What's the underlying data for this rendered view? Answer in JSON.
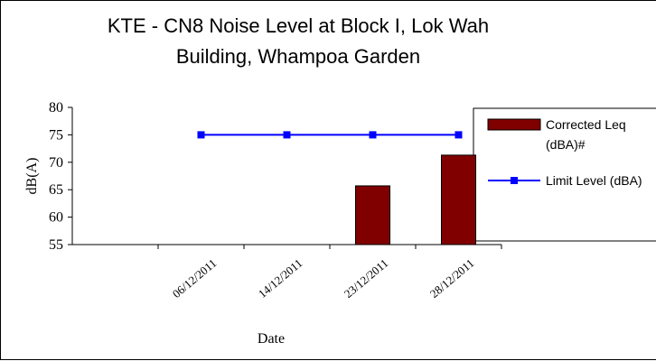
{
  "chart_data": {
    "type": "bar",
    "title": "KTE - CN8 Noise Level at Block I, Lok Wah Building, Whampoa Garden",
    "x_label": "Date",
    "y_label": "dB(A)",
    "categories": [
      null,
      "06/12/2011",
      "14/12/2011",
      "23/12/2011",
      "28/12/2011"
    ],
    "series": [
      {
        "name": "Corrected Leq (dBA)#",
        "type": "bar",
        "color": "#800000",
        "values": [
          null,
          null,
          null,
          65.7,
          71.3
        ]
      },
      {
        "name": "Limit Level (dBA)",
        "type": "line",
        "color": "#0000ff",
        "values": [
          null,
          75,
          75,
          75,
          75
        ]
      }
    ],
    "ylim": [
      55,
      80
    ],
    "yticks": [
      55,
      60,
      65,
      70,
      75,
      80
    ],
    "grid": false
  }
}
